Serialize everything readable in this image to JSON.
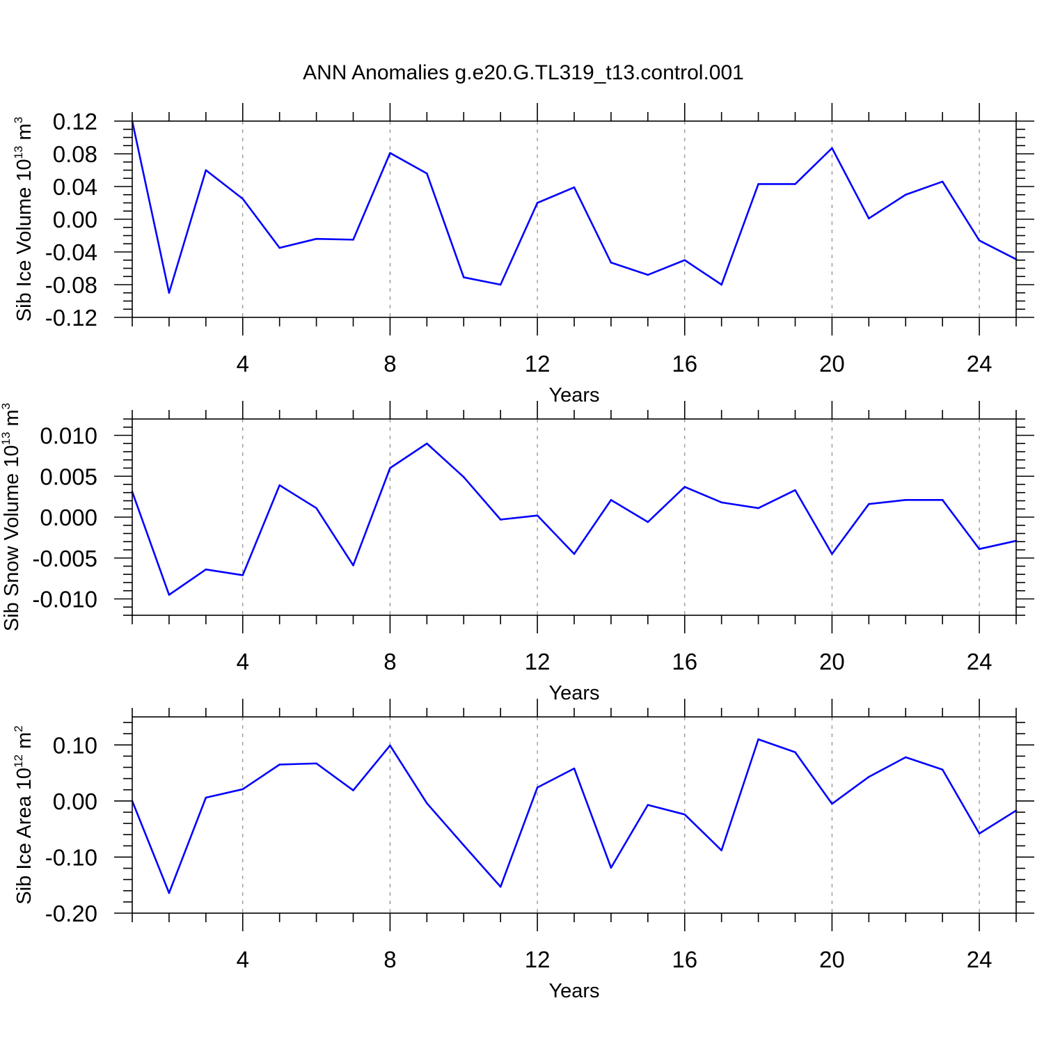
{
  "title": "ANN Anomalies g.e20.G.TL319_t13.control.001",
  "colors": {
    "series": "#0000ff"
  },
  "chart_data": [
    {
      "type": "line",
      "xlabel": "Years",
      "ylabel": [
        {
          "t": "Sib Ice Volume 10"
        },
        {
          "t": "13",
          "sup": true
        },
        {
          "t": " m"
        },
        {
          "t": "3",
          "sup": true
        }
      ],
      "x": [
        1,
        2,
        3,
        4,
        5,
        6,
        7,
        8,
        9,
        10,
        11,
        12,
        13,
        14,
        15,
        16,
        17,
        18,
        19,
        20,
        21,
        22,
        23,
        24,
        25
      ],
      "xlim": [
        1,
        25
      ],
      "xticks": [
        "4",
        "8",
        "12",
        "16",
        "20",
        "24"
      ],
      "xminor": 1,
      "xgrid": true,
      "ylim": [
        -0.12,
        0.12
      ],
      "yticks": [
        "0.12",
        "0.08",
        "0.04",
        "0.00",
        "-0.04",
        "-0.08",
        "-0.12"
      ],
      "yminor": 0.01,
      "series": [
        {
          "values": [
            0.12,
            -0.09,
            0.06,
            0.025,
            -0.035,
            -0.024,
            -0.025,
            0.081,
            0.056,
            -0.071,
            -0.08,
            0.02,
            0.039,
            -0.053,
            -0.068,
            -0.05,
            -0.08,
            0.043,
            0.043,
            0.087,
            0.001,
            0.03,
            0.046,
            -0.026,
            -0.049
          ]
        }
      ]
    },
    {
      "type": "line",
      "xlabel": "Years",
      "ylabel": [
        {
          "t": "Sib Snow Volume 10"
        },
        {
          "t": "13",
          "sup": true
        },
        {
          "t": " m"
        },
        {
          "t": "3",
          "sup": true
        }
      ],
      "x": [
        1,
        2,
        3,
        4,
        5,
        6,
        7,
        8,
        9,
        10,
        11,
        12,
        13,
        14,
        15,
        16,
        17,
        18,
        19,
        20,
        21,
        22,
        23,
        24,
        25
      ],
      "xlim": [
        1,
        25
      ],
      "xticks": [
        "4",
        "8",
        "12",
        "16",
        "20",
        "24"
      ],
      "xminor": 1,
      "xgrid": true,
      "ylim": [
        -0.012,
        0.012
      ],
      "yticks": [
        "0.010",
        "0.005",
        "0.000",
        "-0.005",
        "-0.010"
      ],
      "yminor": 0.001,
      "series": [
        {
          "values": [
            0.0031,
            -0.0095,
            -0.0064,
            -0.0071,
            0.0039,
            0.0011,
            -0.0059,
            0.006,
            0.009,
            0.0049,
            -0.0003,
            0.0002,
            -0.0045,
            0.0021,
            -0.0006,
            0.0037,
            0.0018,
            0.0011,
            0.0033,
            -0.0045,
            0.0016,
            0.0021,
            0.0021,
            -0.0039,
            -0.0029
          ]
        }
      ]
    },
    {
      "type": "line",
      "xlabel": "Years",
      "ylabel": [
        {
          "t": "Sib Ice Area 10"
        },
        {
          "t": "12",
          "sup": true
        },
        {
          "t": " m"
        },
        {
          "t": "2",
          "sup": true
        }
      ],
      "x": [
        1,
        2,
        3,
        4,
        5,
        6,
        7,
        8,
        9,
        10,
        11,
        12,
        13,
        14,
        15,
        16,
        17,
        18,
        19,
        20,
        21,
        22,
        23,
        24,
        25
      ],
      "xlim": [
        1,
        25
      ],
      "xticks": [
        "4",
        "8",
        "12",
        "16",
        "20",
        "24"
      ],
      "xminor": 1,
      "xgrid": true,
      "ylim": [
        -0.2,
        0.15
      ],
      "yticks": [
        "0.10",
        "0.00",
        "-0.10",
        "-0.20"
      ],
      "yminor": 0.02,
      "series": [
        {
          "values": [
            0.0,
            -0.164,
            0.006,
            0.021,
            0.065,
            0.067,
            0.019,
            0.099,
            -0.004,
            -0.079,
            -0.153,
            0.024,
            0.058,
            -0.119,
            -0.007,
            -0.024,
            -0.088,
            0.11,
            0.087,
            -0.005,
            0.043,
            0.078,
            0.056,
            -0.058,
            -0.017
          ]
        }
      ]
    }
  ]
}
